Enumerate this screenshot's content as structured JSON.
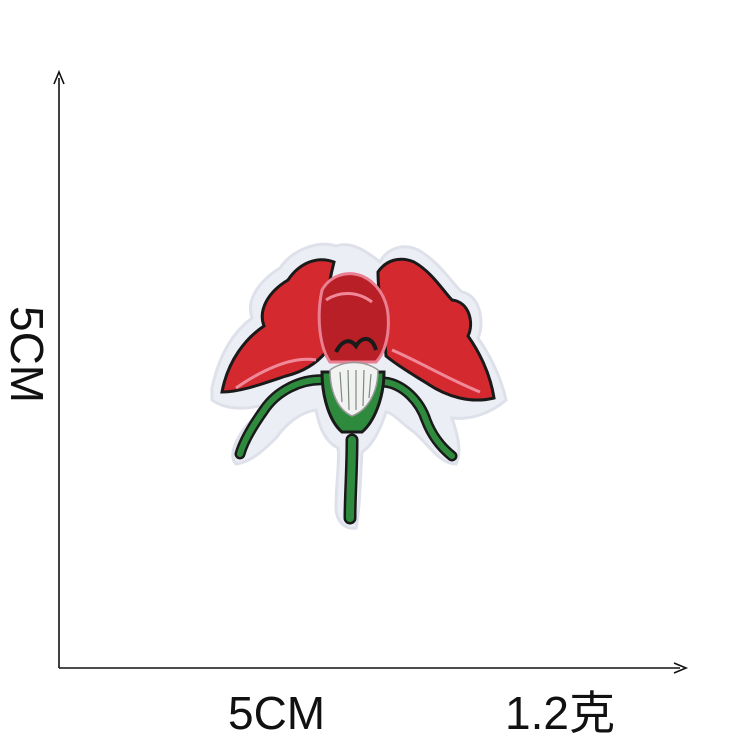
{
  "dimensions": {
    "height_label": "5CM",
    "width_label": "5CM",
    "weight_label": "1.2克"
  },
  "patch": {
    "icon": "embroidered-red-flower-patch-icon",
    "colors": {
      "petal_red": "#d42a2f",
      "petal_dark": "#a3161c",
      "outline": "#1a1a1a",
      "pink_accent": "#f08a9a",
      "stem_green": "#2e8b3e",
      "bud_white": "#f2f2f2",
      "felt_border": "#eceef5"
    }
  }
}
